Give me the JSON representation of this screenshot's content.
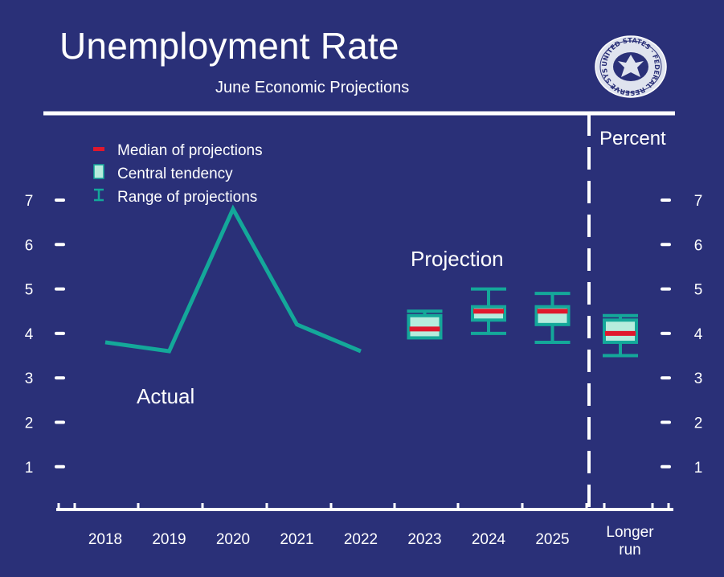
{
  "title": "Unemployment Rate",
  "subtitle": "June Economic Projections",
  "unit_label": "Percent",
  "colors": {
    "background": "#2a3078",
    "actual_line": "#14a89a",
    "central_tendency": "#b6ecdd",
    "range": "#14a89a",
    "median": "#e0182d",
    "axis": "#ffffff"
  },
  "seal": {
    "text": "UNITED STATES · FEDERAL RESERVE SYSTEM ·",
    "icon": "federal-reserve-seal-icon"
  },
  "chart_data": {
    "type": "line",
    "title": "Unemployment Rate",
    "subtitle": "June Economic Projections",
    "ylabel": "Percent",
    "ylim": [
      0,
      7.5
    ],
    "y_ticks": [
      1,
      2,
      3,
      4,
      5,
      6,
      7
    ],
    "categories": [
      "2018",
      "2019",
      "2020",
      "2021",
      "2022",
      "2023",
      "2024",
      "2025",
      "Longer run"
    ],
    "annotations": {
      "actual": "Actual",
      "projection": "Projection"
    },
    "legend": {
      "position": "top-left",
      "items": [
        {
          "label": "Median of projections",
          "symbol": "median"
        },
        {
          "label": "Central tendency",
          "symbol": "central"
        },
        {
          "label": "Range of projections",
          "symbol": "range"
        }
      ]
    },
    "actual": {
      "x": [
        "2018",
        "2019",
        "2020",
        "2021",
        "2022"
      ],
      "values": [
        3.8,
        3.6,
        6.8,
        4.2,
        3.6
      ]
    },
    "projections": [
      {
        "x": "2023",
        "range_low": 4.0,
        "range_high": 4.5,
        "central_low": 3.9,
        "central_high": 4.4,
        "median": 4.1
      },
      {
        "x": "2024",
        "range_low": 4.0,
        "range_high": 5.0,
        "central_low": 4.3,
        "central_high": 4.6,
        "median": 4.5
      },
      {
        "x": "2025",
        "range_low": 3.8,
        "range_high": 4.9,
        "central_low": 4.2,
        "central_high": 4.6,
        "median": 4.5
      },
      {
        "x": "Longer run",
        "range_low": 3.5,
        "range_high": 4.4,
        "central_low": 3.8,
        "central_high": 4.3,
        "median": 4.0
      }
    ],
    "longer_run_label": [
      "Longer",
      "run"
    ],
    "grid": false
  }
}
